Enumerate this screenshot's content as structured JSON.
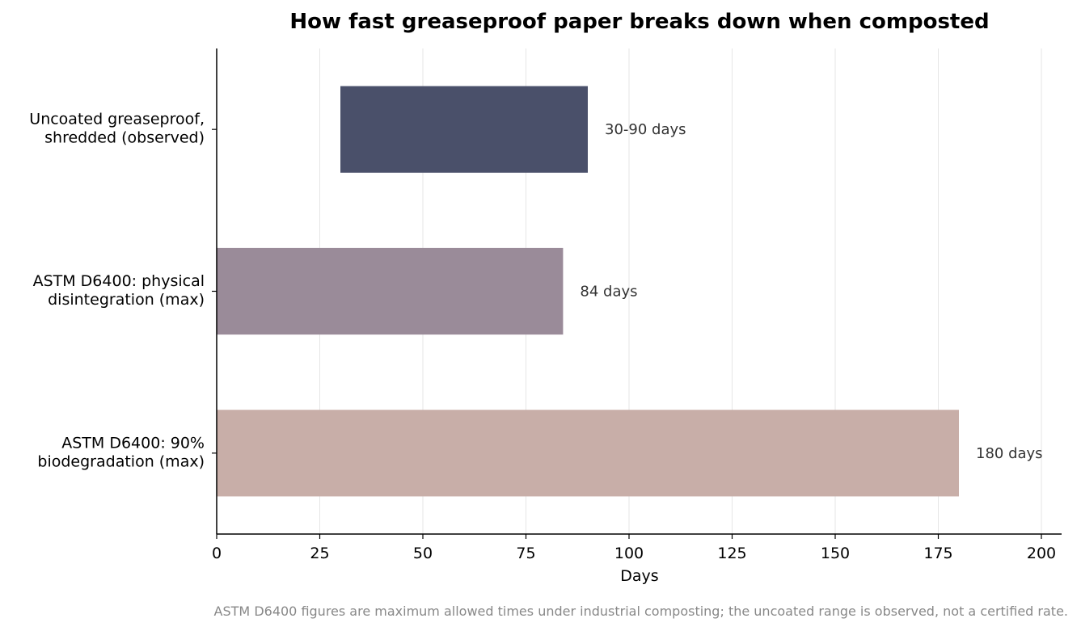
{
  "chart_data": {
    "type": "bar",
    "orientation": "horizontal",
    "title": "How fast greaseproof paper breaks down when composted",
    "xlabel": "Days",
    "ylabel": "",
    "xlim": [
      0,
      205
    ],
    "xticks": [
      0,
      25,
      50,
      75,
      100,
      125,
      150,
      175,
      200
    ],
    "grid": "vertical",
    "categories": [
      [
        "Uncoated greaseproof,",
        "shredded (observed)"
      ],
      [
        "ASTM D6400: physical",
        "disintegration (max)"
      ],
      [
        "ASTM D6400: 90%",
        "biodegradation (max)"
      ]
    ],
    "bars": [
      {
        "start": 30,
        "end": 90,
        "label": "30-90 days",
        "color": "#4a506a"
      },
      {
        "start": 0,
        "end": 84,
        "label": "84 days",
        "color": "#9a8b99"
      },
      {
        "start": 0,
        "end": 180,
        "label": "180 days",
        "color": "#c8aea8"
      }
    ],
    "footnote": "ASTM D6400 figures are maximum allowed times under industrial composting; the uncoated range is observed, not a certified rate."
  }
}
